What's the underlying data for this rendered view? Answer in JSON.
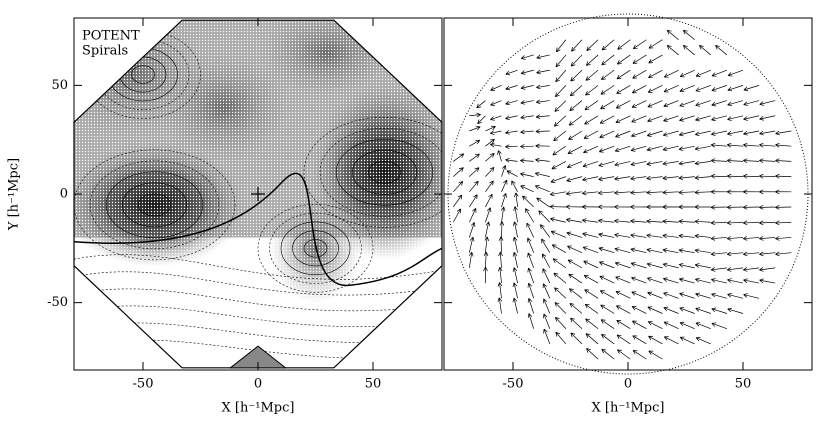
{
  "chart_data": [
    {
      "type": "contour",
      "annotation": [
        "POTENT",
        "Spirals"
      ],
      "xlabel": "X [h⁻¹Mpc]",
      "ylabel": "Y [h⁻¹Mpc]",
      "xlim": [
        -80,
        80
      ],
      "ylim": [
        -81,
        81
      ],
      "xticks": [
        -50,
        0,
        50
      ],
      "yticks": [
        -50,
        0,
        50
      ]
    },
    {
      "type": "quiver",
      "xlabel": "X [h⁻¹Mpc]",
      "xlim": [
        -80,
        80
      ],
      "ylim": [
        -81,
        81
      ],
      "xticks": [
        -50,
        0,
        50
      ],
      "yticks": [
        -50,
        0,
        50
      ]
    }
  ]
}
